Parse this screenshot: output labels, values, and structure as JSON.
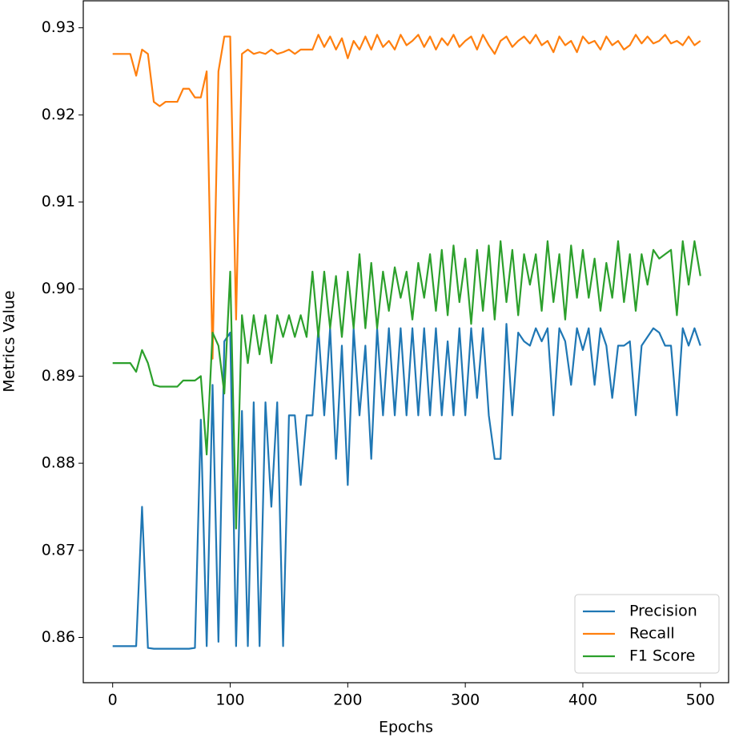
{
  "chart_data": {
    "type": "line",
    "xlabel": "Epochs",
    "ylabel": "Metrics Value",
    "x": [
      0,
      5,
      10,
      15,
      20,
      25,
      30,
      35,
      40,
      45,
      50,
      55,
      60,
      65,
      70,
      75,
      80,
      85,
      90,
      95,
      100,
      105,
      110,
      115,
      120,
      125,
      130,
      135,
      140,
      145,
      150,
      155,
      160,
      165,
      170,
      175,
      180,
      185,
      190,
      195,
      200,
      205,
      210,
      215,
      220,
      225,
      230,
      235,
      240,
      245,
      250,
      255,
      260,
      265,
      270,
      275,
      280,
      285,
      290,
      295,
      300,
      305,
      310,
      315,
      320,
      325,
      330,
      335,
      340,
      345,
      350,
      355,
      360,
      365,
      370,
      375,
      380,
      385,
      390,
      395,
      400,
      405,
      410,
      415,
      420,
      425,
      430,
      435,
      440,
      445,
      450,
      455,
      460,
      465,
      470,
      475,
      480,
      485,
      490,
      495,
      500
    ],
    "series": [
      {
        "name": "Precision",
        "color": "#1f77b4",
        "values": [
          0.859,
          0.859,
          0.859,
          0.859,
          0.859,
          0.875,
          0.8588,
          0.8587,
          0.8587,
          0.8587,
          0.8587,
          0.8587,
          0.8587,
          0.8587,
          0.8588,
          0.885,
          0.859,
          0.889,
          0.8595,
          0.894,
          0.895,
          0.859,
          0.886,
          0.859,
          0.887,
          0.859,
          0.887,
          0.875,
          0.887,
          0.859,
          0.8855,
          0.8855,
          0.8775,
          0.8855,
          0.8855,
          0.8955,
          0.8855,
          0.8955,
          0.8805,
          0.8935,
          0.8775,
          0.8955,
          0.8855,
          0.8935,
          0.8805,
          0.8955,
          0.8855,
          0.8955,
          0.8855,
          0.8955,
          0.8855,
          0.8955,
          0.8855,
          0.8955,
          0.8855,
          0.8955,
          0.8855,
          0.894,
          0.8855,
          0.8955,
          0.8855,
          0.8955,
          0.8875,
          0.8955,
          0.8855,
          0.8805,
          0.8805,
          0.896,
          0.8855,
          0.895,
          0.894,
          0.8935,
          0.8955,
          0.894,
          0.8955,
          0.8855,
          0.8955,
          0.894,
          0.889,
          0.8955,
          0.893,
          0.8955,
          0.889,
          0.8955,
          0.8935,
          0.8875,
          0.8935,
          0.8935,
          0.894,
          0.8855,
          0.8935,
          0.8945,
          0.8955,
          0.895,
          0.8935,
          0.8935,
          0.8855,
          0.8955,
          0.8935,
          0.8955,
          0.8935
        ]
      },
      {
        "name": "Recall",
        "color": "#ff7f0e",
        "values": [
          0.927,
          0.927,
          0.927,
          0.927,
          0.9245,
          0.9275,
          0.927,
          0.9215,
          0.921,
          0.9215,
          0.9215,
          0.9215,
          0.923,
          0.923,
          0.922,
          0.922,
          0.925,
          0.892,
          0.925,
          0.929,
          0.929,
          0.8965,
          0.927,
          0.9275,
          0.927,
          0.9272,
          0.927,
          0.9275,
          0.927,
          0.9272,
          0.9275,
          0.927,
          0.9275,
          0.9275,
          0.9275,
          0.9292,
          0.9278,
          0.929,
          0.9275,
          0.9288,
          0.9265,
          0.9285,
          0.9275,
          0.929,
          0.9275,
          0.9292,
          0.9278,
          0.9285,
          0.9275,
          0.9292,
          0.928,
          0.9285,
          0.9292,
          0.9278,
          0.929,
          0.9275,
          0.9288,
          0.928,
          0.9292,
          0.9278,
          0.9285,
          0.929,
          0.9275,
          0.9292,
          0.928,
          0.927,
          0.9285,
          0.929,
          0.9278,
          0.9285,
          0.929,
          0.9282,
          0.9292,
          0.928,
          0.9285,
          0.9272,
          0.929,
          0.928,
          0.9285,
          0.9272,
          0.929,
          0.9282,
          0.9285,
          0.9275,
          0.929,
          0.928,
          0.9285,
          0.9275,
          0.928,
          0.9292,
          0.9282,
          0.929,
          0.9282,
          0.9285,
          0.9292,
          0.9282,
          0.9285,
          0.928,
          0.929,
          0.928,
          0.9285
        ]
      },
      {
        "name": "F1 Score",
        "color": "#2ca02c",
        "values": [
          0.8915,
          0.8915,
          0.8915,
          0.8915,
          0.8905,
          0.893,
          0.8915,
          0.889,
          0.8888,
          0.8888,
          0.8888,
          0.8888,
          0.8895,
          0.8895,
          0.8895,
          0.89,
          0.881,
          0.895,
          0.8935,
          0.888,
          0.902,
          0.8725,
          0.897,
          0.8915,
          0.897,
          0.8925,
          0.897,
          0.8915,
          0.897,
          0.8945,
          0.897,
          0.8945,
          0.897,
          0.8945,
          0.902,
          0.8945,
          0.902,
          0.8955,
          0.9015,
          0.8945,
          0.902,
          0.8955,
          0.904,
          0.8955,
          0.903,
          0.8955,
          0.902,
          0.8975,
          0.9025,
          0.899,
          0.902,
          0.8965,
          0.903,
          0.899,
          0.904,
          0.8975,
          0.9045,
          0.897,
          0.905,
          0.8985,
          0.9035,
          0.896,
          0.9045,
          0.8975,
          0.905,
          0.8965,
          0.9055,
          0.8985,
          0.9045,
          0.897,
          0.904,
          0.9005,
          0.904,
          0.8975,
          0.9055,
          0.8985,
          0.904,
          0.8965,
          0.905,
          0.899,
          0.9045,
          0.899,
          0.9035,
          0.8975,
          0.903,
          0.899,
          0.9055,
          0.8985,
          0.904,
          0.8975,
          0.904,
          0.9005,
          0.9045,
          0.9035,
          0.904,
          0.9045,
          0.897,
          0.9055,
          0.9005,
          0.9055,
          0.9015
        ]
      }
    ],
    "xlim": [
      -25,
      524
    ],
    "ylim": [
      0.8548,
      0.9331
    ],
    "xticks": [
      0,
      100,
      200,
      300,
      400,
      500
    ],
    "yticks": [
      0.86,
      0.87,
      0.88,
      0.89,
      {
        "value": 0.9,
        "label": "0.90"
      },
      0.91,
      0.92,
      0.93
    ],
    "legend": "lower right"
  }
}
